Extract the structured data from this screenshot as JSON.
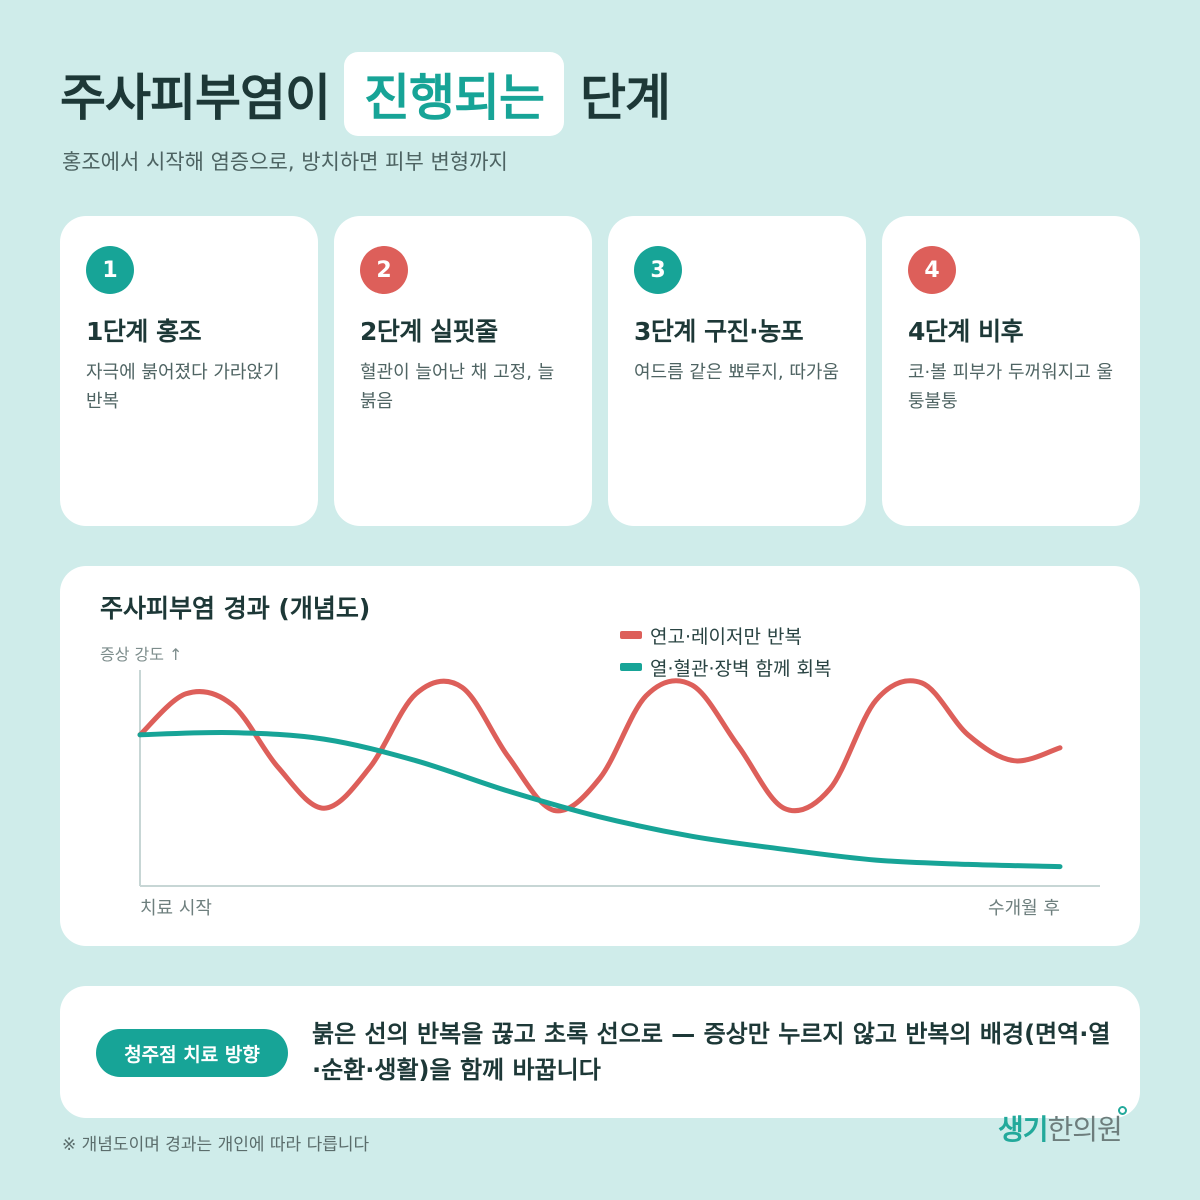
{
  "header": {
    "title_prefix": "주사피부염이",
    "title_highlight": "진행되는",
    "title_suffix": "단계",
    "subtitle": "홍조에서 시작해 염증으로, 방치하면 피부 변형까지"
  },
  "stages": [
    {
      "number": "1",
      "title": "1단계 홍조",
      "description": "자극에 붉어졌다 가라앉기 반복",
      "accent": "#17a497"
    },
    {
      "number": "2",
      "title": "2단계 실핏줄",
      "description": "혈관이 늘어난 채 고정, 늘 붉음",
      "accent": "#dd5f5a"
    },
    {
      "number": "3",
      "title": "3단계 구진·농포",
      "description": "여드름 같은 뾰루지, 따가움",
      "accent": "#17a497"
    },
    {
      "number": "4",
      "title": "4단계 비후",
      "description": "코·볼 피부가 두꺼워지고 울퉁불퉁",
      "accent": "#dd5f5a"
    }
  ],
  "chart_data": {
    "type": "line",
    "title": "주사피부염 경과 (개념도)",
    "ylabel": "증상 강도 ↑",
    "x_start_label": "치료 시작",
    "x_end_label": "수개월 후",
    "xlim": [
      0,
      1
    ],
    "ylim": [
      0,
      1
    ],
    "grid": false,
    "legend_position": "top-right",
    "series": [
      {
        "name": "연고·레이저만 반복",
        "color": "#dd5f5a",
        "x": [
          0,
          0.05,
          0.1,
          0.15,
          0.2,
          0.25,
          0.3,
          0.35,
          0.4,
          0.45,
          0.5,
          0.55,
          0.6,
          0.65,
          0.7,
          0.75,
          0.8,
          0.85,
          0.9,
          0.95,
          1.0
        ],
        "y": [
          0.7,
          0.89,
          0.84,
          0.55,
          0.36,
          0.55,
          0.89,
          0.92,
          0.6,
          0.35,
          0.5,
          0.88,
          0.93,
          0.65,
          0.36,
          0.45,
          0.86,
          0.94,
          0.7,
          0.58,
          0.64
        ]
      },
      {
        "name": "열·혈관·장벽 함께 회복",
        "color": "#17a497",
        "x": [
          0,
          0.1,
          0.2,
          0.3,
          0.4,
          0.5,
          0.6,
          0.7,
          0.8,
          0.9,
          1.0
        ],
        "y": [
          0.7,
          0.71,
          0.68,
          0.58,
          0.44,
          0.32,
          0.23,
          0.17,
          0.12,
          0.1,
          0.09
        ]
      }
    ]
  },
  "direction": {
    "label": "청주점 치료 방향",
    "text": "붉은 선의 반복을 끊고 초록 선으로 — 증상만 누르지 않고 반복의 배경(면역·열·순환·생활)을 함께 바꿉니다"
  },
  "footnote": "※ 개념도이며 경과는 개인에 따라 다릅니다",
  "brand": {
    "part1": "생기",
    "part2": "한의원"
  }
}
